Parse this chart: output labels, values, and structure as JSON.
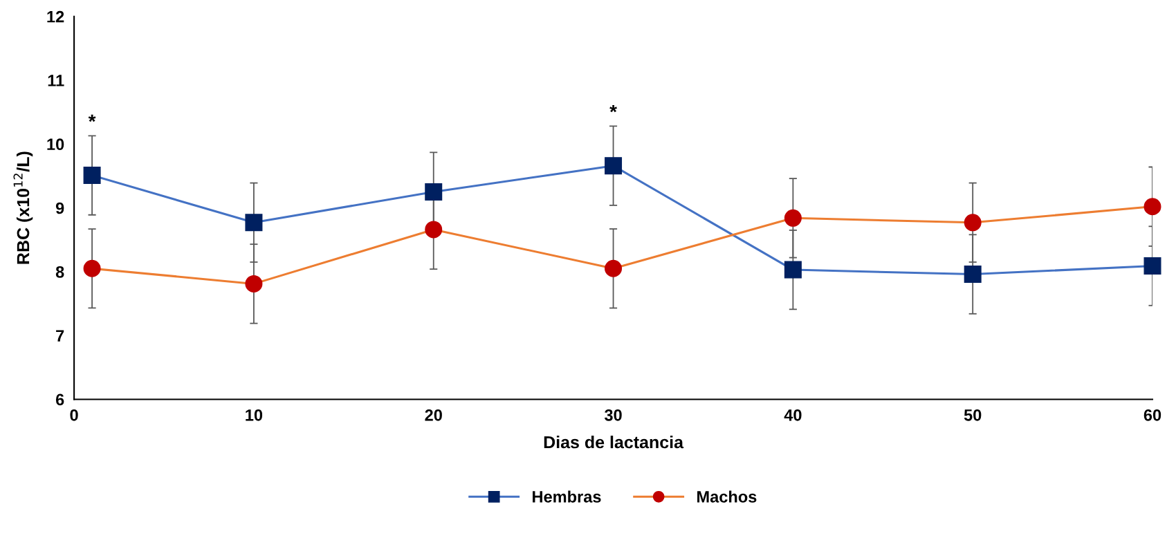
{
  "chart_data": {
    "type": "line",
    "xlabel": "Dias de lactancia",
    "ylabel": "RBC (x10$^{12}$/L)",
    "x": [
      1,
      10,
      20,
      30,
      40,
      50,
      60
    ],
    "series": [
      {
        "name": "Hembras",
        "color": "#4472c4",
        "marker": "square",
        "values": [
          9.51,
          8.77,
          9.25,
          9.66,
          8.03,
          7.96,
          8.09
        ],
        "errors": [
          0.62,
          0.62,
          0.62,
          0.62,
          0.62,
          0.62,
          0.62
        ]
      },
      {
        "name": "Machos",
        "color": "#ed7d31",
        "marker": "circle",
        "values": [
          8.05,
          7.81,
          8.66,
          8.05,
          8.84,
          8.77,
          9.02
        ],
        "errors": [
          0.62,
          0.62,
          0.62,
          0.62,
          0.62,
          0.62,
          0.62
        ]
      }
    ],
    "xlim": [
      0,
      60
    ],
    "xticks": [
      0,
      10,
      20,
      30,
      40,
      50,
      60
    ],
    "ylim": [
      6,
      12
    ],
    "yticks": [
      6,
      7,
      8,
      9,
      10,
      11,
      12
    ],
    "grid": false,
    "legend": "bottom",
    "line_style": "solid",
    "annotations": [
      {
        "text": "*",
        "x": 1,
        "y": 10.13
      },
      {
        "text": "*",
        "x": 30,
        "y": 10.28
      }
    ]
  }
}
